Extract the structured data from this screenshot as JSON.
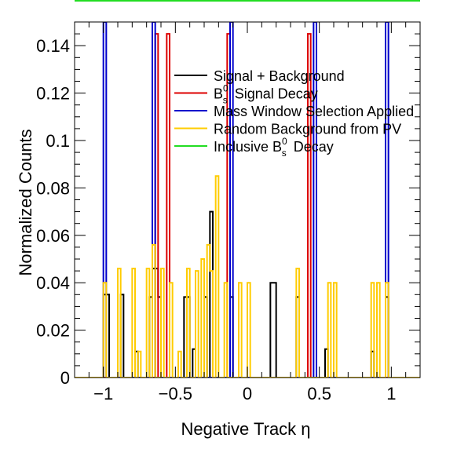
{
  "chart_data": {
    "type": "histogram",
    "xlabel": "Negative Track  η",
    "ylabel": "Normalized Counts",
    "xlim": [
      -1.2,
      1.2
    ],
    "ylim": [
      0,
      0.15
    ],
    "xticks": [
      -1,
      -0.5,
      0,
      0.5,
      1
    ],
    "xtick_labels": [
      "−1",
      "−0.5",
      "0",
      "0.5",
      "1"
    ],
    "yticks": [
      0,
      0.02,
      0.04,
      0.06,
      0.08,
      0.1,
      0.12,
      0.14
    ],
    "ytick_labels": [
      "0",
      "0.02",
      "0.04",
      "0.06",
      "0.08",
      "0.1",
      "0.12",
      "0.14"
    ],
    "bin_width": 0.02,
    "legend_position": "upper-center",
    "series": [
      {
        "name": "Signal + Background",
        "color": "#000000",
        "bins": [
          [
            -1.0,
            0.035
          ],
          [
            -0.98,
            0.035
          ],
          [
            -0.88,
            0.035
          ],
          [
            -0.78,
            0.011
          ],
          [
            -0.68,
            0.034
          ],
          [
            -0.66,
            0.046
          ],
          [
            -0.64,
            0.046
          ],
          [
            -0.62,
            0.034
          ],
          [
            -0.44,
            0.034
          ],
          [
            -0.42,
            0.034
          ],
          [
            -0.38,
            0.012
          ],
          [
            -0.3,
            0.034
          ],
          [
            -0.26,
            0.07
          ],
          [
            -0.12,
            0.034
          ],
          [
            0.16,
            0.04
          ],
          [
            0.18,
            0.04
          ],
          [
            0.34,
            0.034
          ],
          [
            0.54,
            0.012
          ],
          [
            0.86,
            0.011
          ],
          [
            0.96,
            0.034
          ]
        ]
      },
      {
        "name": "B_s^0 Signal Decay",
        "legend_main": "B",
        "legend_sub": "s",
        "legend_sup": "0",
        "legend_rest": "Signal Decay",
        "color": "#dd0000",
        "bins": [
          [
            -0.64,
            0.145
          ],
          [
            -0.56,
            0.145
          ],
          [
            -0.14,
            0.145
          ],
          [
            0.42,
            0.145
          ]
        ]
      },
      {
        "name": "Mass Window Selection Applied",
        "color": "#0000cc",
        "bins": [
          [
            -1.0,
            0.15
          ],
          [
            -0.66,
            0.15
          ],
          [
            -0.12,
            0.15
          ],
          [
            0.46,
            0.15
          ],
          [
            0.96,
            0.15
          ]
        ]
      },
      {
        "name": "Random Background from PV",
        "color": "#ffcc00",
        "bins": [
          [
            -1.0,
            0.04
          ],
          [
            -0.9,
            0.046
          ],
          [
            -0.8,
            0.046
          ],
          [
            -0.76,
            0.011
          ],
          [
            -0.7,
            0.046
          ],
          [
            -0.66,
            0.056
          ],
          [
            -0.6,
            0.046
          ],
          [
            -0.54,
            0.04
          ],
          [
            -0.48,
            0.011
          ],
          [
            -0.42,
            0.046
          ],
          [
            -0.36,
            0.045
          ],
          [
            -0.32,
            0.05
          ],
          [
            -0.28,
            0.056
          ],
          [
            -0.26,
            0.045
          ],
          [
            -0.22,
            0.085
          ],
          [
            -0.16,
            0.04
          ],
          [
            -0.06,
            0.04
          ],
          [
            0.0,
            0.04
          ],
          [
            0.34,
            0.046
          ],
          [
            0.56,
            0.04
          ],
          [
            0.6,
            0.04
          ],
          [
            0.86,
            0.04
          ],
          [
            0.9,
            0.04
          ],
          [
            0.96,
            0.04
          ]
        ]
      },
      {
        "name": "Inclusive B_s^0 Decay",
        "legend_main": "Inclusive B",
        "legend_sub": "s",
        "legend_sup": "0",
        "legend_rest": "Decay",
        "color": "#22dd22",
        "bins": []
      }
    ]
  }
}
